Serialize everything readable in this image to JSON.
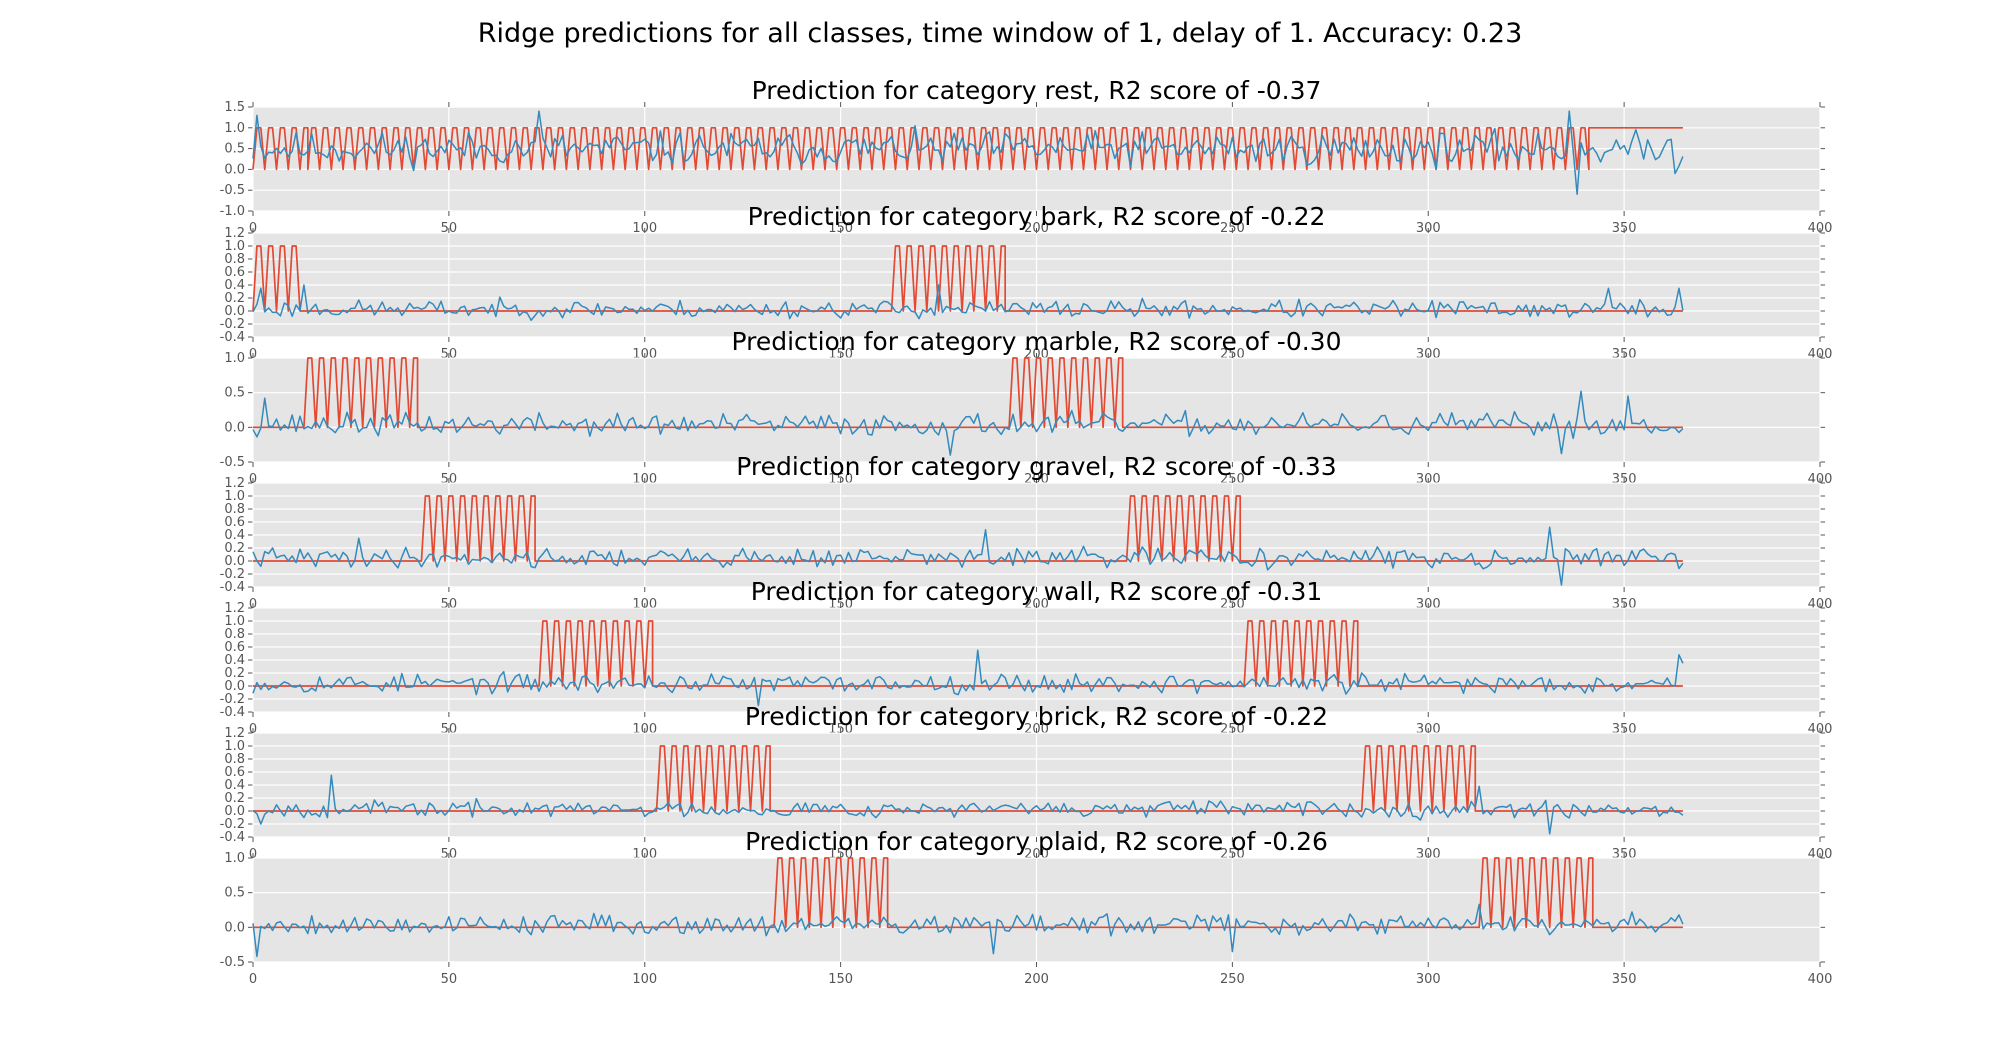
{
  "figure": {
    "suptitle": "Ridge predictions for all classes, time window of 1, delay of 1. Accuracy: 0.23",
    "colors": {
      "target": "#e24a33",
      "prediction": "#348abd",
      "background": "#e5e5e5",
      "grid": "#ffffff"
    }
  },
  "chart_data": [
    {
      "type": "line",
      "title": "Prediction for category rest, R2 score of -0.37",
      "xlim": [
        0,
        400
      ],
      "ylim": [
        -1.0,
        1.5
      ],
      "xticks": [
        0,
        50,
        100,
        150,
        200,
        250,
        300,
        350,
        400
      ],
      "yticks": [
        -1.0,
        -0.5,
        0.0,
        0.5,
        1.0,
        1.5
      ],
      "grid": true,
      "x_end": 365,
      "series": [
        {
          "role": "target",
          "color": "#e24a33",
          "pattern": "alternating 1/0 outside active blocks, constant 0 during class blocks, constant 1 after x=341",
          "segments": [
            {
              "from": 0,
              "to": 14,
              "mode": "alternate",
              "hi": 1,
              "lo": 0
            },
            {
              "from": 14,
              "to": 341,
              "mode": "alternate",
              "hi": 1,
              "lo": 0
            },
            {
              "from": 341,
              "to": 365,
              "mode": "constant",
              "value": 1
            }
          ]
        },
        {
          "role": "prediction",
          "color": "#348abd",
          "mean": 0.5,
          "noise": 0.32,
          "seed": 11,
          "spikes": [
            [
              1,
              1.3
            ],
            [
              73,
              1.4
            ],
            [
              336,
              1.4
            ],
            [
              338,
              -0.6
            ],
            [
              359,
              0.3
            ],
            [
              363,
              -0.1
            ]
          ]
        }
      ]
    },
    {
      "type": "line",
      "title": "Prediction for category bark, R2 score of -0.22",
      "xlim": [
        0,
        400
      ],
      "ylim": [
        -0.4,
        1.2
      ],
      "xticks": [
        0,
        50,
        100,
        150,
        200,
        250,
        300,
        350,
        400
      ],
      "yticks": [
        -0.4,
        -0.2,
        0.0,
        0.2,
        0.4,
        0.6,
        0.8,
        1.0,
        1.2
      ],
      "grid": true,
      "x_end": 365,
      "series": [
        {
          "role": "target",
          "color": "#e24a33",
          "segments": [
            {
              "from": 0,
              "to": 12,
              "mode": "alternate",
              "hi": 1,
              "lo": 0
            },
            {
              "from": 12,
              "to": 163,
              "mode": "constant",
              "value": 0
            },
            {
              "from": 163,
              "to": 192,
              "mode": "alternate",
              "hi": 1,
              "lo": 0
            },
            {
              "from": 192,
              "to": 365,
              "mode": "constant",
              "value": 0
            }
          ]
        },
        {
          "role": "prediction",
          "color": "#348abd",
          "mean": 0.03,
          "noise": 0.11,
          "seed": 23,
          "spikes": [
            [
              2,
              0.35
            ],
            [
              13,
              0.4
            ],
            [
              175,
              0.4
            ],
            [
              346,
              0.35
            ],
            [
              364,
              0.35
            ]
          ]
        }
      ]
    },
    {
      "type": "line",
      "title": "Prediction for category marble, R2 score of -0.30",
      "xlim": [
        0,
        400
      ],
      "ylim": [
        -0.5,
        1.0
      ],
      "xticks": [
        0,
        50,
        100,
        150,
        200,
        250,
        300,
        350,
        400
      ],
      "yticks": [
        -0.5,
        0.0,
        0.5,
        1.0
      ],
      "grid": true,
      "x_end": 365,
      "series": [
        {
          "role": "target",
          "color": "#e24a33",
          "segments": [
            {
              "from": 0,
              "to": 13,
              "mode": "constant",
              "value": 0
            },
            {
              "from": 13,
              "to": 42,
              "mode": "alternate",
              "hi": 1,
              "lo": 0
            },
            {
              "from": 42,
              "to": 193,
              "mode": "constant",
              "value": 0
            },
            {
              "from": 193,
              "to": 222,
              "mode": "alternate",
              "hi": 1,
              "lo": 0
            },
            {
              "from": 222,
              "to": 365,
              "mode": "constant",
              "value": 0
            }
          ]
        },
        {
          "role": "prediction",
          "color": "#348abd",
          "mean": 0.04,
          "noise": 0.13,
          "seed": 37,
          "spikes": [
            [
              3,
              0.42
            ],
            [
              178,
              -0.4
            ],
            [
              339,
              0.52
            ],
            [
              351,
              0.45
            ],
            [
              334,
              -0.38
            ]
          ]
        }
      ]
    },
    {
      "type": "line",
      "title": "Prediction for category gravel, R2 score of -0.33",
      "xlim": [
        0,
        400
      ],
      "ylim": [
        -0.4,
        1.2
      ],
      "xticks": [
        0,
        50,
        100,
        150,
        200,
        250,
        300,
        350,
        400
      ],
      "yticks": [
        -0.4,
        -0.2,
        0.0,
        0.2,
        0.4,
        0.6,
        0.8,
        1.0,
        1.2
      ],
      "grid": true,
      "x_end": 365,
      "series": [
        {
          "role": "target",
          "color": "#e24a33",
          "segments": [
            {
              "from": 0,
              "to": 43,
              "mode": "constant",
              "value": 0
            },
            {
              "from": 43,
              "to": 72,
              "mode": "alternate",
              "hi": 1,
              "lo": 0
            },
            {
              "from": 72,
              "to": 223,
              "mode": "constant",
              "value": 0
            },
            {
              "from": 223,
              "to": 252,
              "mode": "alternate",
              "hi": 1,
              "lo": 0
            },
            {
              "from": 252,
              "to": 365,
              "mode": "constant",
              "value": 0
            }
          ]
        },
        {
          "role": "prediction",
          "color": "#348abd",
          "mean": 0.05,
          "noise": 0.12,
          "seed": 41,
          "spikes": [
            [
              187,
              0.48
            ],
            [
              331,
              0.52
            ],
            [
              334,
              -0.37
            ],
            [
              27,
              0.35
            ],
            [
              363,
              0.1
            ]
          ]
        }
      ]
    },
    {
      "type": "line",
      "title": "Prediction for category wall, R2 score of -0.31",
      "xlim": [
        0,
        400
      ],
      "ylim": [
        -0.4,
        1.2
      ],
      "xticks": [
        0,
        50,
        100,
        150,
        200,
        250,
        300,
        350,
        400
      ],
      "yticks": [
        -0.4,
        -0.2,
        0.0,
        0.2,
        0.4,
        0.6,
        0.8,
        1.0,
        1.2
      ],
      "grid": true,
      "x_end": 365,
      "series": [
        {
          "role": "target",
          "color": "#e24a33",
          "segments": [
            {
              "from": 0,
              "to": 73,
              "mode": "constant",
              "value": 0
            },
            {
              "from": 73,
              "to": 102,
              "mode": "alternate",
              "hi": 1,
              "lo": 0
            },
            {
              "from": 102,
              "to": 253,
              "mode": "constant",
              "value": 0
            },
            {
              "from": 253,
              "to": 282,
              "mode": "alternate",
              "hi": 1,
              "lo": 0
            },
            {
              "from": 282,
              "to": 365,
              "mode": "constant",
              "value": 0
            }
          ]
        },
        {
          "role": "prediction",
          "color": "#348abd",
          "mean": 0.04,
          "noise": 0.12,
          "seed": 53,
          "spikes": [
            [
              185,
              0.55
            ],
            [
              364,
              0.48
            ],
            [
              365,
              0.35
            ],
            [
              129,
              -0.3
            ]
          ]
        }
      ]
    },
    {
      "type": "line",
      "title": "Prediction for category brick, R2 score of -0.22",
      "xlim": [
        0,
        400
      ],
      "ylim": [
        -0.4,
        1.2
      ],
      "xticks": [
        0,
        50,
        100,
        150,
        200,
        250,
        300,
        350,
        400
      ],
      "yticks": [
        -0.4,
        -0.2,
        0.0,
        0.2,
        0.4,
        0.6,
        0.8,
        1.0,
        1.2
      ],
      "grid": true,
      "x_end": 365,
      "series": [
        {
          "role": "target",
          "color": "#e24a33",
          "segments": [
            {
              "from": 0,
              "to": 103,
              "mode": "constant",
              "value": 0
            },
            {
              "from": 103,
              "to": 132,
              "mode": "alternate",
              "hi": 1,
              "lo": 0
            },
            {
              "from": 132,
              "to": 283,
              "mode": "constant",
              "value": 0
            },
            {
              "from": 283,
              "to": 312,
              "mode": "alternate",
              "hi": 1,
              "lo": 0
            },
            {
              "from": 312,
              "to": 365,
              "mode": "constant",
              "value": 0
            }
          ]
        },
        {
          "role": "prediction",
          "color": "#348abd",
          "mean": 0.03,
          "noise": 0.1,
          "seed": 67,
          "spikes": [
            [
              20,
              0.55
            ],
            [
              313,
              0.38
            ],
            [
              331,
              -0.35
            ],
            [
              2,
              -0.2
            ]
          ]
        }
      ]
    },
    {
      "type": "line",
      "title": "Prediction for category plaid, R2 score of -0.26",
      "xlim": [
        0,
        400
      ],
      "ylim": [
        -0.5,
        1.0
      ],
      "xticks": [
        0,
        50,
        100,
        150,
        200,
        250,
        300,
        350,
        400
      ],
      "yticks": [
        -0.5,
        0.0,
        0.5,
        1.0
      ],
      "grid": true,
      "x_end": 365,
      "series": [
        {
          "role": "target",
          "color": "#e24a33",
          "segments": [
            {
              "from": 0,
              "to": 133,
              "mode": "constant",
              "value": 0
            },
            {
              "from": 133,
              "to": 162,
              "mode": "alternate",
              "hi": 1,
              "lo": 0
            },
            {
              "from": 162,
              "to": 313,
              "mode": "constant",
              "value": 0
            },
            {
              "from": 313,
              "to": 342,
              "mode": "alternate",
              "hi": 1,
              "lo": 0
            },
            {
              "from": 342,
              "to": 365,
              "mode": "constant",
              "value": 0
            }
          ]
        },
        {
          "role": "prediction",
          "color": "#348abd",
          "mean": 0.04,
          "noise": 0.12,
          "seed": 79,
          "spikes": [
            [
              1,
              -0.42
            ],
            [
              189,
              -0.38
            ],
            [
              250,
              -0.35
            ],
            [
              313,
              0.33
            ]
          ]
        }
      ]
    }
  ]
}
